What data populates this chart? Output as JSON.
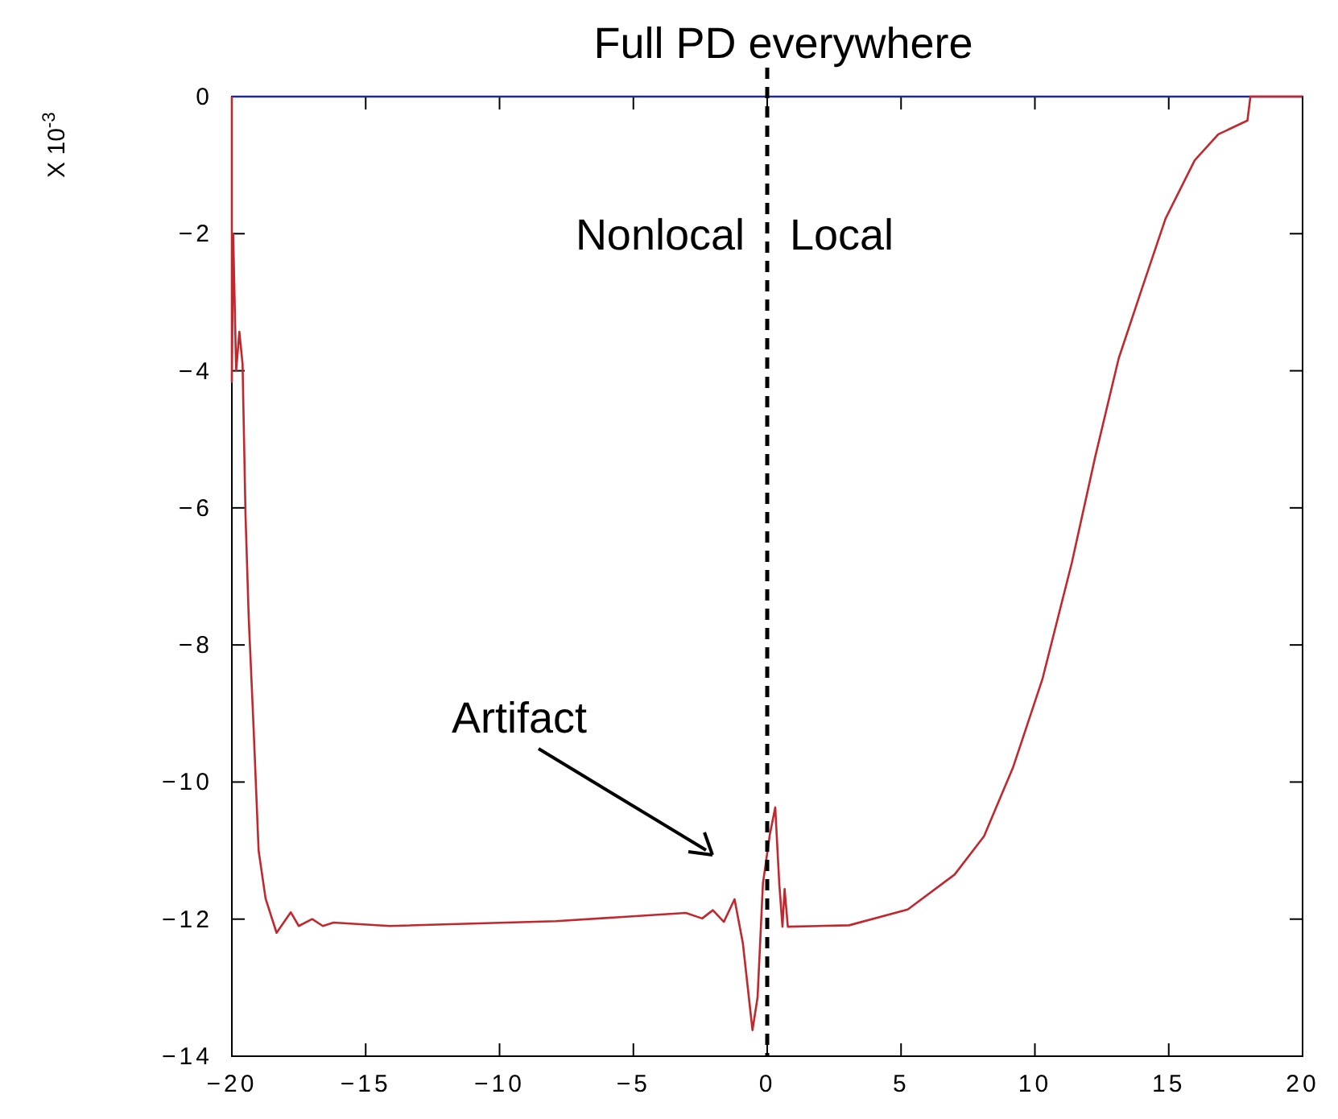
{
  "chart_data": {
    "type": "line",
    "title": "Full PD everywhere",
    "ylabel": "X 10$^{-3}$",
    "xlim": [
      -20,
      20
    ],
    "xticks": [
      -20,
      -15,
      -10,
      -5,
      0,
      5,
      10,
      15,
      20
    ],
    "ylim": [
      -14,
      0
    ],
    "yticks": [
      -14,
      -12,
      -10,
      -8,
      -6,
      -4,
      -2,
      0
    ],
    "annotations": [
      "Nonlocal",
      "Local",
      "Artifact"
    ],
    "ref_lines": [
      {
        "axis": "x",
        "value": 0,
        "color": "#000000",
        "line_style": "dashed"
      }
    ],
    "grid": false,
    "line_style": "solid",
    "series": [
      {
        "color": "#1f2a8f",
        "x": [
          -20,
          20
        ],
        "values": [
          0,
          0
        ]
      },
      {
        "color": "#c0282d",
        "x": [
          -20,
          -20,
          -19.95,
          -19.84,
          -19.72,
          -19.6,
          -19.49,
          -19.37,
          -19.2,
          -19.0,
          -18.74,
          -18.33,
          -17.8,
          -17.5,
          -17.0,
          -16.6,
          -16.2,
          -14.1,
          -7.9,
          -3.04,
          -2.43,
          -2.03,
          -1.62,
          -1.22,
          -0.91,
          -0.55,
          -0.36,
          -0.16,
          0.1,
          0.3,
          0.45,
          0.57,
          0.65,
          0.77,
          3.06,
          5.25,
          7.0,
          8.1,
          9.19,
          10.28,
          11.38,
          12.25,
          13.13,
          14.0,
          14.88,
          15.97,
          16.85,
          17.94,
          18.05,
          20
        ],
        "values": [
          0,
          -4.16,
          -2.0,
          -4.0,
          -3.43,
          -3.9,
          -6.1,
          -7.6,
          -9.1,
          -11.0,
          -11.7,
          -12.2,
          -11.9,
          -12.1,
          -12.0,
          -12.1,
          -12.05,
          -12.1,
          -12.03,
          -11.91,
          -11.99,
          -11.87,
          -12.04,
          -11.71,
          -12.35,
          -13.62,
          -13.14,
          -11.48,
          -10.76,
          -10.37,
          -11.48,
          -12.11,
          -11.56,
          -12.11,
          -12.09,
          -11.86,
          -11.35,
          -10.79,
          -9.78,
          -8.5,
          -6.8,
          -5.26,
          -3.82,
          -2.8,
          -1.78,
          -0.93,
          -0.55,
          -0.35,
          0,
          0
        ]
      }
    ]
  }
}
